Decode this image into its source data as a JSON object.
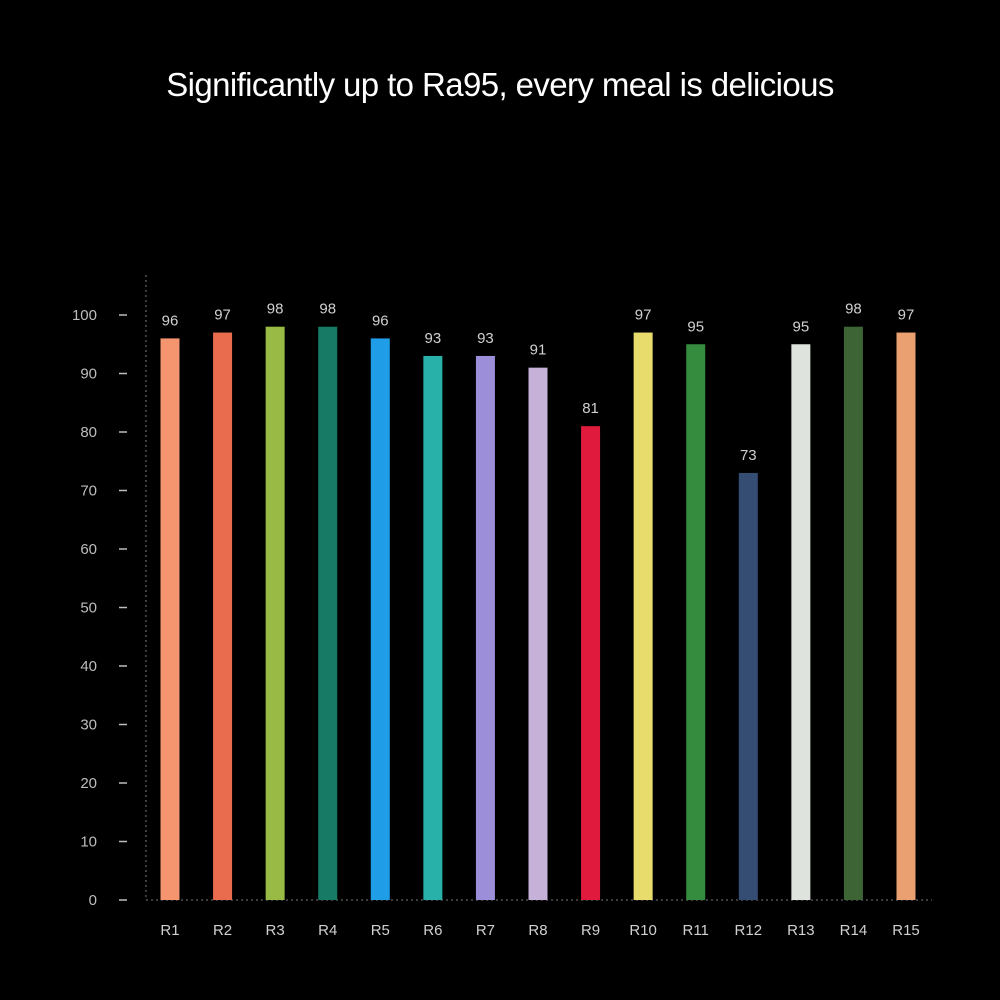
{
  "chart_data": {
    "type": "bar",
    "title": "Significantly up to Ra95, every meal is delicious",
    "categories": [
      "R1",
      "R2",
      "R3",
      "R4",
      "R5",
      "R6",
      "R7",
      "R8",
      "R9",
      "R10",
      "R11",
      "R12",
      "R13",
      "R14",
      "R15"
    ],
    "values": [
      96,
      97,
      98,
      98,
      96,
      93,
      93,
      91,
      81,
      97,
      95,
      73,
      95,
      98,
      97
    ],
    "data_labels": [
      "96",
      "97",
      "98",
      "98",
      "96",
      "93",
      "93",
      "91",
      "81",
      "97",
      "95",
      "73",
      "95",
      "98",
      "97"
    ],
    "colors": [
      "#f4956f",
      "#e86c4d",
      "#99bb45",
      "#177a64",
      "#1f9de6",
      "#27b1a8",
      "#9d8ed9",
      "#c6b1d9",
      "#e01a3c",
      "#e8dc6c",
      "#368c3e",
      "#354d72",
      "#dfe3dd",
      "#3c6435",
      "#eaa070"
    ],
    "ylim": [
      0,
      100
    ],
    "yticks": [
      "0",
      "10",
      "20",
      "30",
      "40",
      "50",
      "60",
      "70",
      "80",
      "90",
      "100"
    ],
    "xlabel": "",
    "ylabel": "",
    "grid": false,
    "legend": "none"
  }
}
